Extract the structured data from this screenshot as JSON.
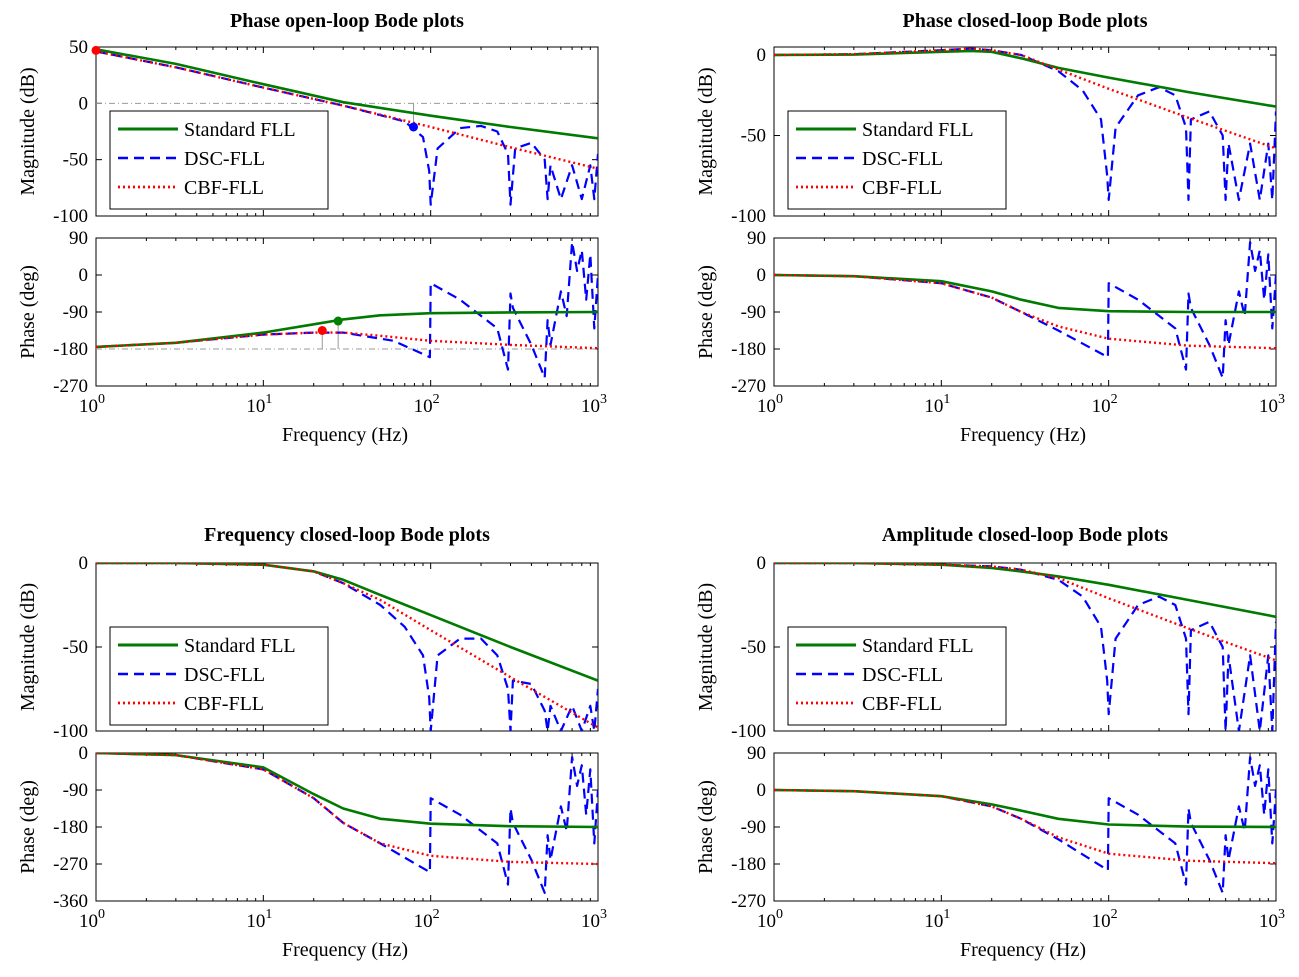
{
  "figure": {
    "xlabel": "Frequency  (Hz)",
    "x_ticks": [
      1,
      10,
      100,
      1000
    ],
    "magnitude_label": "Magnitude (dB)",
    "phase_label": "Phase (deg)"
  },
  "colors": {
    "standard": "#007a00",
    "dsc": "#0000ff",
    "cbf": "#ff0000",
    "marker_red": "#ff0000",
    "marker_green": "#008000",
    "marker_blue": "#0000ff"
  },
  "legend": [
    "Standard FLL",
    "DSC-FLL",
    "CBF-FLL"
  ],
  "chart_data": [
    {
      "type": "line",
      "title": "Phase open-loop Bode plots",
      "xscale": "log",
      "xlim": [
        1,
        1000
      ],
      "magnitude": {
        "ylabel": "Magnitude (dB)",
        "ylim": [
          -100,
          50
        ],
        "yticks": [
          -100,
          -50,
          0,
          50
        ],
        "legend_position": "left",
        "series": [
          {
            "name": "Standard FLL",
            "x": [
              1,
              3,
              10,
              30,
              100,
              300,
              1000
            ],
            "y": [
              48,
              35,
              17,
              1,
              -11,
              -21,
              -31
            ]
          },
          {
            "name": "DSC-FLL",
            "x": [
              1,
              3,
              10,
              30,
              70,
              90,
              98,
              100,
              110,
              150,
              200,
              250,
              290,
              300,
              320,
              400,
              480,
              500,
              520,
              600,
              700,
              800,
              900,
              950,
              1000
            ],
            "y": [
              46,
              32,
              14,
              -2,
              -16,
              -30,
              -60,
              -90,
              -40,
              -22,
              -20,
              -25,
              -45,
              -90,
              -40,
              -35,
              -50,
              -85,
              -55,
              -85,
              -55,
              -85,
              -55,
              -85,
              -45
            ]
          },
          {
            "name": "CBF-FLL",
            "x": [
              1,
              3,
              10,
              30,
              100,
              300,
              1000
            ],
            "y": [
              46,
              32,
              14,
              -2,
              -21,
              -39,
              -58
            ]
          }
        ],
        "markers": [
          {
            "x": 1,
            "y": 47,
            "color": "red"
          },
          {
            "x": 79,
            "y": -21,
            "color": "blue"
          }
        ]
      },
      "phase": {
        "ylabel": "Phase (deg)",
        "ylim": [
          -270,
          90
        ],
        "yticks": [
          -270,
          -180,
          -90,
          0,
          90
        ],
        "series": [
          {
            "name": "Standard FLL",
            "x": [
              1,
              3,
              10,
              20,
              30,
              50,
              100,
              300,
              1000
            ],
            "y": [
              -175,
              -165,
              -140,
              -120,
              -108,
              -98,
              -93,
              -91,
              -90
            ]
          },
          {
            "name": "DSC-FLL",
            "x": [
              1,
              3,
              10,
              20,
              30,
              60,
              99,
              100,
              150,
              250,
              290,
              300,
              310,
              400,
              480,
              500,
              520,
              600,
              650,
              700,
              750,
              800,
              850,
              900,
              950,
              1000
            ],
            "y": [
              -175,
              -165,
              -145,
              -140,
              -140,
              -160,
              -200,
              -20,
              -60,
              -130,
              -230,
              -45,
              -80,
              -170,
              -250,
              -110,
              -170,
              -40,
              -100,
              80,
              10,
              60,
              -60,
              50,
              -130,
              0
            ]
          },
          {
            "name": "CBF-FLL",
            "x": [
              1,
              3,
              10,
              20,
              30,
              50,
              100,
              300,
              1000
            ],
            "y": [
              -175,
              -165,
              -145,
              -140,
              -140,
              -148,
              -160,
              -170,
              -178
            ]
          }
        ],
        "markers": [
          {
            "x": 28,
            "y": -112,
            "color": "green"
          },
          {
            "x": 22.5,
            "y": -135,
            "color": "red"
          }
        ]
      }
    },
    {
      "type": "line",
      "title": "Phase closed-loop Bode plots",
      "xscale": "log",
      "xlim": [
        1,
        1000
      ],
      "magnitude": {
        "ylabel": "Magnitude (dB)",
        "ylim": [
          -100,
          5
        ],
        "yticks": [
          -100,
          -50,
          0
        ],
        "legend_position": "left",
        "series": [
          {
            "name": "Standard FLL",
            "x": [
              1,
              3,
              10,
              15,
              20,
              30,
              50,
              100,
              300,
              1000
            ],
            "y": [
              0,
              0.3,
              2,
              2.5,
              2,
              -2,
              -8,
              -14,
              -23,
              -32
            ]
          },
          {
            "name": "DSC-FLL",
            "x": [
              1,
              3,
              10,
              15,
              20,
              30,
              50,
              70,
              90,
              98,
              100,
              110,
              150,
              200,
              250,
              290,
              300,
              310,
              400,
              480,
              500,
              520,
              600,
              700,
              800,
              900,
              950,
              1000
            ],
            "y": [
              0,
              0.5,
              3,
              4,
              3,
              0,
              -10,
              -22,
              -40,
              -75,
              -90,
              -45,
              -25,
              -20,
              -25,
              -45,
              -90,
              -40,
              -35,
              -50,
              -90,
              -55,
              -90,
              -55,
              -90,
              -55,
              -90,
              -35
            ]
          },
          {
            "name": "CBF-FLL",
            "x": [
              1,
              3,
              10,
              15,
              20,
              30,
              50,
              100,
              300,
              1000
            ],
            "y": [
              0,
              0.5,
              3,
              4,
              3,
              0,
              -9,
              -21,
              -39,
              -58
            ]
          }
        ]
      },
      "phase": {
        "ylabel": "Phase (deg)",
        "ylim": [
          -270,
          90
        ],
        "yticks": [
          -270,
          -180,
          -90,
          0,
          90
        ],
        "series": [
          {
            "name": "Standard FLL",
            "x": [
              1,
              3,
              10,
              20,
              30,
              50,
              100,
              300,
              1000
            ],
            "y": [
              0,
              -3,
              -15,
              -40,
              -60,
              -80,
              -88,
              -90,
              -90
            ]
          },
          {
            "name": "DSC-FLL",
            "x": [
              1,
              3,
              10,
              20,
              30,
              50,
              99,
              100,
              150,
              250,
              290,
              300,
              310,
              400,
              480,
              500,
              520,
              600,
              650,
              700,
              750,
              800,
              850,
              900,
              950,
              1000
            ],
            "y": [
              0,
              -3,
              -20,
              -55,
              -90,
              -135,
              -200,
              -20,
              -60,
              -130,
              -230,
              -45,
              -80,
              -170,
              -250,
              -110,
              -170,
              -40,
              -100,
              80,
              10,
              60,
              -60,
              50,
              -130,
              0
            ]
          },
          {
            "name": "CBF-FLL",
            "x": [
              1,
              3,
              10,
              20,
              30,
              50,
              100,
              300,
              1000
            ],
            "y": [
              0,
              -3,
              -20,
              -55,
              -90,
              -125,
              -155,
              -172,
              -178
            ]
          }
        ]
      }
    },
    {
      "type": "line",
      "title": "Frequency closed-loop Bode plots",
      "xscale": "log",
      "xlim": [
        1,
        1000
      ],
      "magnitude": {
        "ylabel": "Magnitude (dB)",
        "ylim": [
          -100,
          0
        ],
        "yticks": [
          -100,
          -50,
          0
        ],
        "legend_position": "left",
        "series": [
          {
            "name": "Standard FLL",
            "x": [
              1,
              3,
              10,
              20,
              30,
              50,
              100,
              300,
              1000
            ],
            "y": [
              0,
              0,
              -1,
              -5,
              -10,
              -19,
              -31,
              -50,
              -70
            ]
          },
          {
            "name": "DSC-FLL",
            "x": [
              1,
              3,
              10,
              20,
              30,
              50,
              70,
              90,
              98,
              100,
              110,
              150,
              200,
              250,
              290,
              300,
              310,
              400,
              480,
              500,
              520,
              600,
              700,
              800,
              900,
              950,
              1000
            ],
            "y": [
              0,
              0,
              -1,
              -5,
              -12,
              -25,
              -38,
              -55,
              -80,
              -100,
              -55,
              -45,
              -45,
              -55,
              -75,
              -100,
              -70,
              -72,
              -88,
              -100,
              -85,
              -100,
              -85,
              -100,
              -85,
              -100,
              -75
            ]
          },
          {
            "name": "CBF-FLL",
            "x": [
              1,
              3,
              10,
              20,
              30,
              50,
              100,
              300,
              1000
            ],
            "y": [
              0,
              0,
              -1,
              -5,
              -12,
              -22,
              -40,
              -68,
              -98
            ]
          }
        ]
      },
      "phase": {
        "ylabel": "Phase (deg)",
        "ylim": [
          -360,
          0
        ],
        "yticks": [
          -360,
          -270,
          -180,
          -90,
          0
        ],
        "series": [
          {
            "name": "Standard FLL",
            "x": [
              1,
              3,
              10,
              20,
              30,
              50,
              100,
              300,
              1000
            ],
            "y": [
              0,
              -5,
              -35,
              -100,
              -135,
              -160,
              -172,
              -178,
              -180
            ]
          },
          {
            "name": "DSC-FLL",
            "x": [
              1,
              3,
              10,
              20,
              30,
              50,
              99,
              100,
              150,
              250,
              290,
              300,
              310,
              400,
              480,
              500,
              520,
              600,
              650,
              700,
              750,
              800,
              850,
              900,
              950,
              1000
            ],
            "y": [
              0,
              -5,
              -40,
              -110,
              -170,
              -220,
              -290,
              -110,
              -150,
              -220,
              -320,
              -135,
              -170,
              -260,
              -340,
              -200,
              -260,
              -130,
              -190,
              -10,
              -80,
              -30,
              -150,
              -40,
              -220,
              -90
            ]
          },
          {
            "name": "CBF-FLL",
            "x": [
              1,
              3,
              10,
              20,
              30,
              50,
              100,
              300,
              1000
            ],
            "y": [
              0,
              -5,
              -40,
              -110,
              -170,
              -220,
              -250,
              -265,
              -270
            ]
          }
        ]
      }
    },
    {
      "type": "line",
      "title": "Amplitude closed-loop Bode plots",
      "xscale": "log",
      "xlim": [
        1,
        1000
      ],
      "magnitude": {
        "ylabel": "Magnitude (dB)",
        "ylim": [
          -100,
          0
        ],
        "yticks": [
          -100,
          -50,
          0
        ],
        "legend_position": "left",
        "series": [
          {
            "name": "Standard FLL",
            "x": [
              1,
              3,
              10,
              20,
              30,
              50,
              100,
              300,
              1000
            ],
            "y": [
              0,
              0,
              -1,
              -3,
              -5,
              -8,
              -13,
              -22,
              -32
            ]
          },
          {
            "name": "DSC-FLL",
            "x": [
              1,
              3,
              10,
              20,
              30,
              50,
              70,
              90,
              98,
              100,
              110,
              150,
              200,
              250,
              290,
              300,
              310,
              400,
              480,
              500,
              520,
              600,
              700,
              800,
              900,
              950,
              1000
            ],
            "y": [
              0,
              0,
              -1,
              -2,
              -4,
              -10,
              -20,
              -38,
              -70,
              -90,
              -45,
              -25,
              -20,
              -25,
              -45,
              -90,
              -40,
              -35,
              -50,
              -100,
              -55,
              -100,
              -55,
              -100,
              -55,
              -100,
              -35
            ]
          },
          {
            "name": "CBF-FLL",
            "x": [
              1,
              3,
              10,
              20,
              30,
              50,
              100,
              300,
              1000
            ],
            "y": [
              0,
              0,
              -1,
              -2,
              -4,
              -9,
              -21,
              -39,
              -58
            ]
          }
        ]
      },
      "phase": {
        "ylabel": "Phase (deg)",
        "ylim": [
          -270,
          90
        ],
        "yticks": [
          -270,
          -180,
          -90,
          0,
          90
        ],
        "series": [
          {
            "name": "Standard FLL",
            "x": [
              1,
              3,
              10,
              20,
              30,
              50,
              100,
              300,
              1000
            ],
            "y": [
              0,
              -3,
              -15,
              -35,
              -50,
              -70,
              -84,
              -89,
              -90
            ]
          },
          {
            "name": "DSC-FLL",
            "x": [
              1,
              3,
              10,
              20,
              30,
              50,
              99,
              100,
              150,
              250,
              290,
              300,
              310,
              400,
              480,
              500,
              520,
              600,
              650,
              700,
              750,
              800,
              850,
              900,
              950,
              1000
            ],
            "y": [
              0,
              -3,
              -15,
              -40,
              -70,
              -120,
              -195,
              -20,
              -60,
              -130,
              -230,
              -45,
              -80,
              -170,
              -250,
              -110,
              -170,
              -40,
              -100,
              80,
              10,
              60,
              -60,
              50,
              -130,
              0
            ]
          },
          {
            "name": "CBF-FLL",
            "x": [
              1,
              3,
              10,
              20,
              30,
              50,
              100,
              300,
              1000
            ],
            "y": [
              0,
              -3,
              -15,
              -40,
              -70,
              -115,
              -155,
              -172,
              -178
            ]
          }
        ]
      }
    }
  ]
}
